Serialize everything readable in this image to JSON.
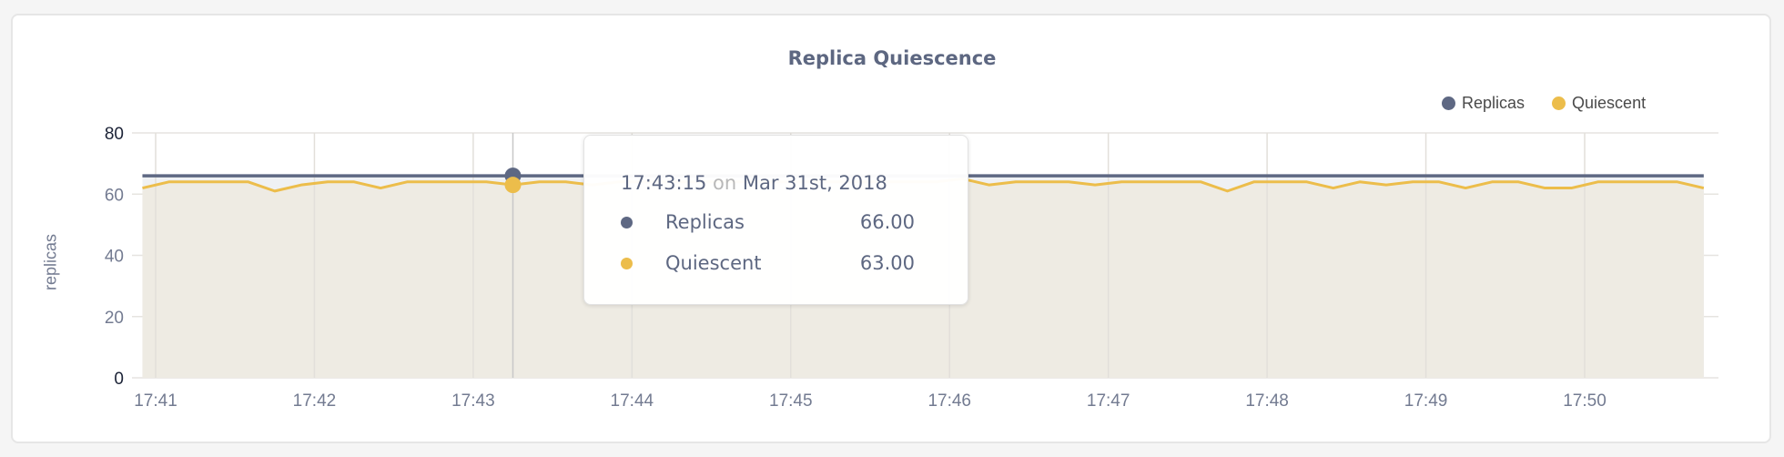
{
  "chart_data": {
    "type": "area",
    "title": "Replica Quiescence",
    "ylabel": "replicas",
    "xlabel": "",
    "ylim": [
      0,
      80
    ],
    "yticks": [
      "0",
      "20",
      "40",
      "60",
      "80"
    ],
    "xticks": [
      "17:41",
      "17:42",
      "17:43",
      "17:44",
      "17:45",
      "17:46",
      "17:47",
      "17:48",
      "17:49",
      "17:50"
    ],
    "x_start": "17:40:55",
    "x_step_seconds": 10,
    "grid": true,
    "legend_position": "top-right",
    "series": [
      {
        "name": "Replicas",
        "color": "#5e6883",
        "fill": "#eff1f4",
        "values": [
          66,
          66,
          66,
          66,
          66,
          66,
          66,
          66,
          66,
          66,
          66,
          66,
          66,
          66,
          66,
          66,
          66,
          66,
          66,
          66,
          66,
          66,
          66,
          66,
          66,
          66,
          66,
          66,
          66,
          66,
          66,
          66,
          66,
          66,
          66,
          66,
          66,
          66,
          66,
          66,
          66,
          66,
          66,
          66,
          66,
          66,
          66,
          66,
          66,
          66,
          66,
          66,
          66,
          66,
          66,
          66,
          66,
          66,
          66,
          66
        ]
      },
      {
        "name": "Quiescent",
        "color": "#ecbd4b",
        "fill": "#eeebe3",
        "values": [
          62,
          64,
          64,
          64,
          64,
          61,
          63,
          64,
          64,
          62,
          64,
          64,
          64,
          64,
          63,
          64,
          64,
          63,
          64,
          64,
          64,
          64,
          64,
          64,
          64,
          64,
          64,
          64,
          64,
          64,
          64,
          65,
          63,
          64,
          64,
          64,
          63,
          64,
          64,
          64,
          64,
          61,
          64,
          64,
          64,
          62,
          64,
          63,
          64,
          64,
          62,
          64,
          64,
          62,
          62,
          64,
          64,
          64,
          64,
          62
        ]
      }
    ],
    "hover": {
      "index": 14
    }
  },
  "legend": [
    {
      "label": "Replicas",
      "color": "#5e6883"
    },
    {
      "label": "Quiescent",
      "color": "#ecbd4b"
    }
  ],
  "tooltip": {
    "time": "17:43:15",
    "on": "on",
    "date": "Mar 31st, 2018",
    "rows": [
      {
        "label": "Replicas",
        "value": "66.00",
        "color": "#5e6883"
      },
      {
        "label": "Quiescent",
        "value": "63.00",
        "color": "#ecbd4b"
      }
    ]
  }
}
